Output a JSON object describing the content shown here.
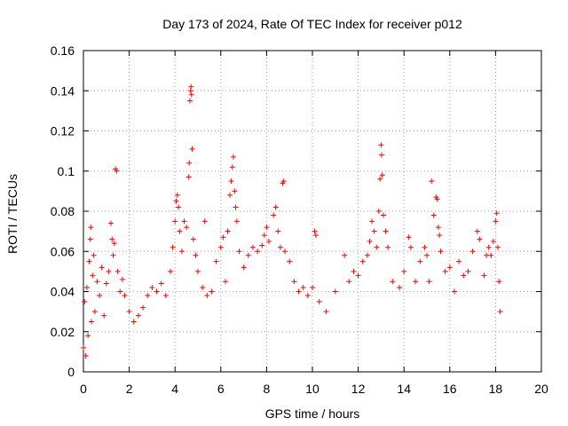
{
  "chart_data": {
    "type": "scatter",
    "title": "Day 173 of 2024, Rate Of TEC Index for receiver p012",
    "xlabel": "GPS time / hours",
    "ylabel": "ROTI / TECUs",
    "xlim": [
      0,
      20
    ],
    "ylim": [
      0,
      0.16
    ],
    "x_ticks": [
      "0",
      "2",
      "4",
      "6",
      "8",
      "10",
      "12",
      "14",
      "16",
      "18",
      "20"
    ],
    "y_ticks": [
      "0",
      "0.02",
      "0.04",
      "0.06",
      "0.08",
      "0.1",
      "0.12",
      "0.14",
      "0.16"
    ],
    "grid": true,
    "marker": "+",
    "color": "#ff0000",
    "series": [
      {
        "values": [
          [
            0.0,
            0.012
          ],
          [
            0.05,
            0.035
          ],
          [
            0.1,
            0.008
          ],
          [
            0.15,
            0.042
          ],
          [
            0.2,
            0.018
          ],
          [
            0.25,
            0.055
          ],
          [
            0.3,
            0.066
          ],
          [
            0.32,
            0.072
          ],
          [
            0.35,
            0.025
          ],
          [
            0.4,
            0.048
          ],
          [
            0.45,
            0.058
          ],
          [
            0.5,
            0.03
          ],
          [
            0.6,
            0.045
          ],
          [
            0.7,
            0.038
          ],
          [
            0.8,
            0.052
          ],
          [
            0.9,
            0.028
          ],
          [
            1.0,
            0.044
          ],
          [
            1.1,
            0.05
          ],
          [
            1.2,
            0.074
          ],
          [
            1.25,
            0.066
          ],
          [
            1.3,
            0.058
          ],
          [
            1.35,
            0.064
          ],
          [
            1.4,
            0.101
          ],
          [
            1.45,
            0.1
          ],
          [
            1.5,
            0.05
          ],
          [
            1.6,
            0.04
          ],
          [
            1.7,
            0.046
          ],
          [
            1.8,
            0.038
          ],
          [
            2.0,
            0.03
          ],
          [
            2.2,
            0.025
          ],
          [
            2.4,
            0.028
          ],
          [
            2.6,
            0.032
          ],
          [
            2.8,
            0.038
          ],
          [
            3.0,
            0.042
          ],
          [
            3.2,
            0.04
          ],
          [
            3.4,
            0.044
          ],
          [
            3.6,
            0.038
          ],
          [
            3.8,
            0.05
          ],
          [
            3.9,
            0.062
          ],
          [
            4.0,
            0.075
          ],
          [
            4.05,
            0.085
          ],
          [
            4.1,
            0.088
          ],
          [
            4.15,
            0.082
          ],
          [
            4.2,
            0.07
          ],
          [
            4.3,
            0.06
          ],
          [
            4.4,
            0.075
          ],
          [
            4.5,
            0.072
          ],
          [
            4.6,
            0.097
          ],
          [
            4.62,
            0.104
          ],
          [
            4.65,
            0.135
          ],
          [
            4.68,
            0.14
          ],
          [
            4.7,
            0.142
          ],
          [
            4.72,
            0.138
          ],
          [
            4.75,
            0.111
          ],
          [
            4.8,
            0.066
          ],
          [
            4.9,
            0.058
          ],
          [
            5.0,
            0.05
          ],
          [
            5.2,
            0.042
          ],
          [
            5.3,
            0.075
          ],
          [
            5.4,
            0.038
          ],
          [
            5.6,
            0.04
          ],
          [
            5.8,
            0.055
          ],
          [
            6.0,
            0.062
          ],
          [
            6.1,
            0.067
          ],
          [
            6.2,
            0.045
          ],
          [
            6.3,
            0.07
          ],
          [
            6.4,
            0.088
          ],
          [
            6.45,
            0.095
          ],
          [
            6.5,
            0.102
          ],
          [
            6.55,
            0.107
          ],
          [
            6.6,
            0.09
          ],
          [
            6.65,
            0.082
          ],
          [
            6.7,
            0.075
          ],
          [
            6.8,
            0.06
          ],
          [
            7.0,
            0.052
          ],
          [
            7.2,
            0.058
          ],
          [
            7.4,
            0.062
          ],
          [
            7.6,
            0.06
          ],
          [
            7.8,
            0.063
          ],
          [
            7.9,
            0.068
          ],
          [
            8.0,
            0.072
          ],
          [
            8.1,
            0.065
          ],
          [
            8.3,
            0.078
          ],
          [
            8.4,
            0.082
          ],
          [
            8.5,
            0.07
          ],
          [
            8.6,
            0.062
          ],
          [
            8.7,
            0.094
          ],
          [
            8.75,
            0.095
          ],
          [
            8.8,
            0.06
          ],
          [
            9.0,
            0.055
          ],
          [
            9.2,
            0.045
          ],
          [
            9.4,
            0.04
          ],
          [
            9.6,
            0.042
          ],
          [
            9.8,
            0.038
          ],
          [
            10.0,
            0.042
          ],
          [
            10.1,
            0.07
          ],
          [
            10.15,
            0.068
          ],
          [
            10.3,
            0.035
          ],
          [
            10.6,
            0.03
          ],
          [
            11.0,
            0.04
          ],
          [
            11.4,
            0.058
          ],
          [
            11.6,
            0.045
          ],
          [
            11.8,
            0.05
          ],
          [
            12.0,
            0.048
          ],
          [
            12.2,
            0.055
          ],
          [
            12.4,
            0.058
          ],
          [
            12.5,
            0.065
          ],
          [
            12.6,
            0.075
          ],
          [
            12.7,
            0.07
          ],
          [
            12.8,
            0.062
          ],
          [
            12.9,
            0.08
          ],
          [
            12.95,
            0.096
          ],
          [
            13.0,
            0.113
          ],
          [
            13.02,
            0.108
          ],
          [
            13.05,
            0.098
          ],
          [
            13.1,
            0.078
          ],
          [
            13.2,
            0.07
          ],
          [
            13.3,
            0.062
          ],
          [
            13.5,
            0.045
          ],
          [
            13.8,
            0.042
          ],
          [
            14.0,
            0.05
          ],
          [
            14.2,
            0.067
          ],
          [
            14.3,
            0.062
          ],
          [
            14.5,
            0.045
          ],
          [
            14.7,
            0.055
          ],
          [
            14.9,
            0.062
          ],
          [
            15.0,
            0.058
          ],
          [
            15.1,
            0.045
          ],
          [
            15.2,
            0.095
          ],
          [
            15.3,
            0.078
          ],
          [
            15.4,
            0.087
          ],
          [
            15.45,
            0.086
          ],
          [
            15.5,
            0.072
          ],
          [
            15.55,
            0.068
          ],
          [
            15.6,
            0.06
          ],
          [
            15.8,
            0.05
          ],
          [
            16.0,
            0.052
          ],
          [
            16.2,
            0.04
          ],
          [
            16.4,
            0.055
          ],
          [
            16.6,
            0.048
          ],
          [
            16.8,
            0.05
          ],
          [
            17.0,
            0.06
          ],
          [
            17.2,
            0.07
          ],
          [
            17.3,
            0.066
          ],
          [
            17.5,
            0.048
          ],
          [
            17.6,
            0.058
          ],
          [
            17.7,
            0.062
          ],
          [
            17.8,
            0.058
          ],
          [
            17.9,
            0.065
          ],
          [
            18.0,
            0.075
          ],
          [
            18.05,
            0.079
          ],
          [
            18.1,
            0.062
          ],
          [
            18.15,
            0.045
          ],
          [
            18.2,
            0.03
          ]
        ]
      }
    ]
  }
}
